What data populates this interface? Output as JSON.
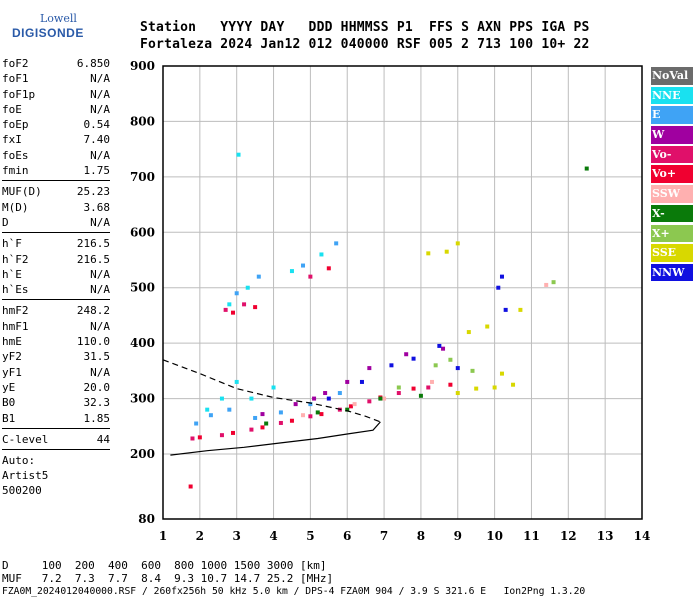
{
  "logo": {
    "line1": "Lowell",
    "line2": "DIGISONDE"
  },
  "header": {
    "row1": "Station   YYYY DAY   DDD HHMMSS P1  FFS S AXN PPS IGA PS",
    "row2": "Fortaleza 2024 Jan12 012 040000 RSF 005 2 713 100 10+ 22"
  },
  "params": {
    "g1": [
      [
        "foF2",
        "6.850"
      ],
      [
        "foF1",
        "N/A"
      ],
      [
        "foF1p",
        "N/A"
      ],
      [
        "foE",
        "N/A"
      ],
      [
        "foEp",
        "0.54"
      ],
      [
        "fxI",
        "7.40"
      ],
      [
        "foEs",
        "N/A"
      ],
      [
        "fmin",
        "1.75"
      ]
    ],
    "g2": [
      [
        "MUF(D)",
        "25.23"
      ],
      [
        "M(D)",
        "3.68"
      ],
      [
        "D",
        "N/A"
      ]
    ],
    "g3": [
      [
        "h`F",
        "216.5"
      ],
      [
        "h`F2",
        "216.5"
      ],
      [
        "h`E",
        "N/A"
      ],
      [
        "h`Es",
        "N/A"
      ]
    ],
    "g4": [
      [
        "hmF2",
        "248.2"
      ],
      [
        "hmF1",
        "N/A"
      ],
      [
        "hmE",
        "110.0"
      ],
      [
        "yF2",
        "31.5"
      ],
      [
        "yF1",
        "N/A"
      ],
      [
        "yE",
        "20.0"
      ],
      [
        "B0",
        "32.3"
      ],
      [
        "B1",
        "1.85"
      ]
    ],
    "g5": [
      [
        "C-level",
        "44"
      ]
    ],
    "auto": [
      "Auto:",
      "Artist5",
      "500200"
    ]
  },
  "legend": [
    {
      "label": "NoVal",
      "color": "#6b6b6b"
    },
    {
      "label": "NNE",
      "color": "#19e1f0"
    },
    {
      "label": "E",
      "color": "#3fa3f5"
    },
    {
      "label": "W",
      "color": "#a000a0"
    },
    {
      "label": "Vo-",
      "color": "#e0106a"
    },
    {
      "label": "Vo+",
      "color": "#f00030"
    },
    {
      "label": "SSW",
      "color": "#ffb0b0"
    },
    {
      "label": "X-",
      "color": "#0a7a0a"
    },
    {
      "label": "X+",
      "color": "#8cc850"
    },
    {
      "label": "SSE",
      "color": "#d8d800"
    },
    {
      "label": "NNW",
      "color": "#1010e0"
    }
  ],
  "footer": {
    "row1": "D     100  200  400  600  800 1000 1500 3000 [km]",
    "row2": "MUF   7.2  7.3  7.7  8.4  9.3 10.7 14.7 25.2 [MHz]",
    "row3": "FZA0M_2024012040000.RSF / 260fx256h 50 kHz 5.0 km / DPS-4 FZA0M 904 / 3.9 S 321.6 E   Ion2Png 1.3.20"
  },
  "chart_data": {
    "type": "scatter",
    "xlim": [
      1,
      14
    ],
    "ylim": [
      80,
      900
    ],
    "xticks": [
      "1",
      "2",
      "3",
      "4",
      "5",
      "6",
      "7",
      "8",
      "9",
      "10",
      "11",
      "12",
      "13",
      "14"
    ],
    "yticks": [
      "80",
      "200",
      "300",
      "400",
      "500",
      "600",
      "700",
      "800",
      "900"
    ],
    "grid": true,
    "legend_position": "right",
    "series": [
      {
        "name": "NNE",
        "points": [
          [
            2.2,
            280
          ],
          [
            2.6,
            300
          ],
          [
            3.0,
            330
          ],
          [
            3.4,
            300
          ],
          [
            4.0,
            320
          ],
          [
            2.8,
            470
          ],
          [
            3.3,
            500
          ],
          [
            4.5,
            530
          ],
          [
            5.3,
            560
          ],
          [
            3.05,
            740
          ]
        ]
      },
      {
        "name": "E",
        "points": [
          [
            1.9,
            255
          ],
          [
            2.3,
            270
          ],
          [
            2.8,
            280
          ],
          [
            3.5,
            265
          ],
          [
            4.2,
            275
          ],
          [
            5.0,
            290
          ],
          [
            5.8,
            310
          ],
          [
            3.0,
            490
          ],
          [
            3.6,
            520
          ],
          [
            4.8,
            540
          ],
          [
            5.7,
            580
          ]
        ]
      },
      {
        "name": "W",
        "points": [
          [
            4.6,
            290
          ],
          [
            5.4,
            310
          ],
          [
            6.0,
            330
          ],
          [
            6.6,
            355
          ],
          [
            7.6,
            380
          ],
          [
            8.6,
            390
          ],
          [
            3.7,
            272
          ],
          [
            5.1,
            300
          ]
        ]
      },
      {
        "name": "Vo-",
        "points": [
          [
            1.8,
            228
          ],
          [
            2.6,
            234
          ],
          [
            3.4,
            244
          ],
          [
            4.2,
            256
          ],
          [
            5.0,
            268
          ],
          [
            5.8,
            280
          ],
          [
            6.6,
            295
          ],
          [
            7.4,
            310
          ],
          [
            8.2,
            320
          ],
          [
            2.7,
            460
          ],
          [
            3.2,
            470
          ],
          [
            5.0,
            520
          ]
        ]
      },
      {
        "name": "Vo+",
        "points": [
          [
            2.0,
            230
          ],
          [
            2.9,
            238
          ],
          [
            3.7,
            248
          ],
          [
            4.5,
            260
          ],
          [
            5.3,
            272
          ],
          [
            6.1,
            286
          ],
          [
            6.9,
            302
          ],
          [
            7.8,
            318
          ],
          [
            8.8,
            325
          ],
          [
            2.9,
            455
          ],
          [
            3.5,
            465
          ],
          [
            5.5,
            535
          ],
          [
            1.75,
            140
          ]
        ]
      },
      {
        "name": "SSW",
        "points": [
          [
            4.8,
            270
          ],
          [
            6.2,
            290
          ],
          [
            7.0,
            300
          ],
          [
            8.3,
            330
          ],
          [
            11.4,
            505
          ]
        ]
      },
      {
        "name": "X-",
        "points": [
          [
            3.8,
            255
          ],
          [
            5.2,
            275
          ],
          [
            6.0,
            280
          ],
          [
            6.9,
            300
          ],
          [
            8.0,
            305
          ],
          [
            12.5,
            715
          ]
        ]
      },
      {
        "name": "X+",
        "points": [
          [
            7.4,
            320
          ],
          [
            8.4,
            360
          ],
          [
            8.8,
            370
          ],
          [
            9.4,
            350
          ],
          [
            11.6,
            510
          ]
        ]
      },
      {
        "name": "SSE",
        "points": [
          [
            9.0,
            310
          ],
          [
            9.5,
            318
          ],
          [
            10.0,
            320
          ],
          [
            10.5,
            325
          ],
          [
            10.2,
            345
          ],
          [
            8.2,
            562
          ],
          [
            8.7,
            565
          ],
          [
            9.0,
            580
          ],
          [
            9.3,
            420
          ],
          [
            9.8,
            430
          ],
          [
            10.7,
            460
          ]
        ]
      },
      {
        "name": "NNW",
        "points": [
          [
            5.5,
            300
          ],
          [
            6.4,
            330
          ],
          [
            7.2,
            360
          ],
          [
            7.8,
            372
          ],
          [
            8.5,
            395
          ],
          [
            9.0,
            355
          ],
          [
            10.1,
            500
          ],
          [
            10.2,
            520
          ],
          [
            10.3,
            460
          ]
        ]
      }
    ],
    "curves": [
      {
        "name": "profile",
        "style": "solid",
        "points": [
          [
            1.2,
            198
          ],
          [
            2.2,
            206
          ],
          [
            3.2,
            212
          ],
          [
            4.2,
            220
          ],
          [
            5.2,
            228
          ],
          [
            6.0,
            236
          ],
          [
            6.7,
            243
          ],
          [
            6.9,
            258
          ]
        ]
      },
      {
        "name": "trace",
        "style": "dashed",
        "points": [
          [
            1.0,
            370
          ],
          [
            2.0,
            345
          ],
          [
            3.0,
            318
          ],
          [
            4.0,
            302
          ],
          [
            5.0,
            292
          ],
          [
            6.0,
            278
          ],
          [
            6.5,
            268
          ],
          [
            6.9,
            258
          ]
        ]
      }
    ]
  }
}
